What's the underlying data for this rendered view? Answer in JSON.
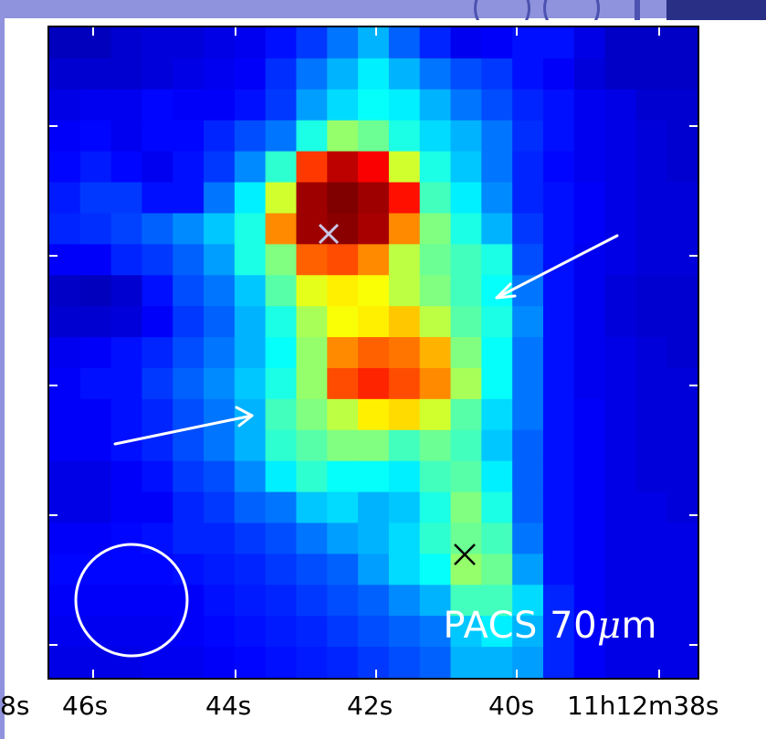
{
  "image": {
    "label_prefix": "PACS 70",
    "label_mu": "μ",
    "label_suffix": "m",
    "x_axis": {
      "tick_labels": [
        "8s",
        "46s",
        "44s",
        "42s",
        "40s",
        "11h12m38s"
      ]
    },
    "markers": [
      {
        "name": "primary-peak-cross",
        "color": "#c8c8e8"
      },
      {
        "name": "secondary-source-cross",
        "color": "#000000"
      }
    ],
    "arrows": [
      {
        "name": "upper-arrow",
        "color": "#ffffff"
      },
      {
        "name": "lower-arrow",
        "color": "#ffffff"
      }
    ],
    "beam_circle": {
      "color": "#ffffff"
    },
    "colormap": "jet",
    "grid_cols": 21,
    "grid_rows": 21,
    "pixel_values": [
      [
        0.06,
        0.06,
        0.08,
        0.09,
        0.09,
        0.1,
        0.11,
        0.14,
        0.18,
        0.24,
        0.3,
        0.22,
        0.16,
        0.11,
        0.12,
        0.14,
        0.14,
        0.1,
        0.07,
        0.07,
        0.07
      ],
      [
        0.08,
        0.08,
        0.08,
        0.09,
        0.1,
        0.11,
        0.12,
        0.17,
        0.24,
        0.3,
        0.36,
        0.3,
        0.24,
        0.2,
        0.18,
        0.14,
        0.12,
        0.09,
        0.07,
        0.07,
        0.07
      ],
      [
        0.1,
        0.11,
        0.11,
        0.13,
        0.12,
        0.12,
        0.14,
        0.18,
        0.28,
        0.34,
        0.38,
        0.36,
        0.3,
        0.24,
        0.2,
        0.16,
        0.14,
        0.11,
        0.1,
        0.08,
        0.08
      ],
      [
        0.12,
        0.13,
        0.11,
        0.13,
        0.13,
        0.16,
        0.2,
        0.24,
        0.4,
        0.52,
        0.48,
        0.4,
        0.34,
        0.3,
        0.24,
        0.17,
        0.14,
        0.11,
        0.1,
        0.09,
        0.08
      ],
      [
        0.13,
        0.15,
        0.13,
        0.11,
        0.14,
        0.18,
        0.26,
        0.42,
        0.82,
        0.94,
        0.88,
        0.58,
        0.4,
        0.32,
        0.24,
        0.16,
        0.13,
        0.11,
        0.1,
        0.09,
        0.08
      ],
      [
        0.15,
        0.18,
        0.18,
        0.14,
        0.14,
        0.24,
        0.36,
        0.58,
        0.97,
        1.0,
        0.97,
        0.86,
        0.44,
        0.36,
        0.26,
        0.16,
        0.14,
        0.12,
        0.1,
        0.09,
        0.09
      ],
      [
        0.16,
        0.17,
        0.19,
        0.22,
        0.26,
        0.32,
        0.4,
        0.74,
        0.97,
        0.99,
        0.96,
        0.74,
        0.5,
        0.4,
        0.3,
        0.18,
        0.14,
        0.12,
        0.1,
        0.09,
        0.09
      ],
      [
        0.12,
        0.12,
        0.16,
        0.18,
        0.22,
        0.28,
        0.4,
        0.5,
        0.78,
        0.8,
        0.74,
        0.56,
        0.48,
        0.44,
        0.4,
        0.2,
        0.14,
        0.11,
        0.1,
        0.09,
        0.09
      ],
      [
        0.07,
        0.06,
        0.08,
        0.14,
        0.2,
        0.24,
        0.32,
        0.46,
        0.6,
        0.64,
        0.62,
        0.56,
        0.5,
        0.44,
        0.38,
        0.24,
        0.14,
        0.11,
        0.09,
        0.08,
        0.08
      ],
      [
        0.08,
        0.08,
        0.09,
        0.12,
        0.18,
        0.22,
        0.3,
        0.4,
        0.54,
        0.62,
        0.64,
        0.68,
        0.56,
        0.46,
        0.4,
        0.26,
        0.14,
        0.11,
        0.09,
        0.08,
        0.08
      ],
      [
        0.11,
        0.12,
        0.14,
        0.16,
        0.2,
        0.24,
        0.3,
        0.38,
        0.52,
        0.74,
        0.78,
        0.76,
        0.7,
        0.5,
        0.38,
        0.24,
        0.14,
        0.11,
        0.1,
        0.09,
        0.08
      ],
      [
        0.12,
        0.14,
        0.14,
        0.18,
        0.22,
        0.26,
        0.32,
        0.4,
        0.52,
        0.8,
        0.84,
        0.8,
        0.74,
        0.54,
        0.38,
        0.24,
        0.14,
        0.11,
        0.1,
        0.09,
        0.09
      ],
      [
        0.12,
        0.12,
        0.14,
        0.16,
        0.2,
        0.24,
        0.3,
        0.44,
        0.5,
        0.56,
        0.64,
        0.66,
        0.58,
        0.46,
        0.34,
        0.24,
        0.14,
        0.12,
        0.1,
        0.09,
        0.09
      ],
      [
        0.12,
        0.12,
        0.14,
        0.16,
        0.2,
        0.24,
        0.3,
        0.42,
        0.46,
        0.5,
        0.5,
        0.44,
        0.48,
        0.44,
        0.32,
        0.22,
        0.14,
        0.12,
        0.1,
        0.09,
        0.09
      ],
      [
        0.1,
        0.1,
        0.12,
        0.14,
        0.18,
        0.2,
        0.26,
        0.36,
        0.42,
        0.38,
        0.38,
        0.36,
        0.44,
        0.46,
        0.36,
        0.22,
        0.14,
        0.12,
        0.1,
        0.09,
        0.09
      ],
      [
        0.1,
        0.1,
        0.12,
        0.12,
        0.16,
        0.18,
        0.22,
        0.24,
        0.32,
        0.34,
        0.3,
        0.32,
        0.4,
        0.5,
        0.4,
        0.22,
        0.14,
        0.12,
        0.1,
        0.1,
        0.09
      ],
      [
        0.12,
        0.12,
        0.13,
        0.14,
        0.16,
        0.16,
        0.18,
        0.2,
        0.24,
        0.28,
        0.3,
        0.34,
        0.42,
        0.48,
        0.44,
        0.24,
        0.14,
        0.12,
        0.1,
        0.1,
        0.1
      ],
      [
        0.13,
        0.13,
        0.13,
        0.13,
        0.14,
        0.15,
        0.16,
        0.18,
        0.2,
        0.22,
        0.28,
        0.34,
        0.38,
        0.52,
        0.48,
        0.28,
        0.14,
        0.12,
        0.1,
        0.1,
        0.1
      ],
      [
        0.12,
        0.12,
        0.12,
        0.12,
        0.12,
        0.14,
        0.15,
        0.16,
        0.18,
        0.2,
        0.22,
        0.26,
        0.3,
        0.44,
        0.44,
        0.34,
        0.16,
        0.12,
        0.1,
        0.1,
        0.1
      ],
      [
        0.11,
        0.11,
        0.11,
        0.11,
        0.12,
        0.13,
        0.14,
        0.15,
        0.16,
        0.18,
        0.2,
        0.22,
        0.24,
        0.32,
        0.36,
        0.3,
        0.16,
        0.12,
        0.1,
        0.1,
        0.1
      ],
      [
        0.1,
        0.1,
        0.1,
        0.11,
        0.11,
        0.12,
        0.13,
        0.14,
        0.15,
        0.16,
        0.18,
        0.2,
        0.22,
        0.3,
        0.3,
        0.28,
        0.16,
        0.12,
        0.1,
        0.1,
        0.1
      ]
    ]
  }
}
